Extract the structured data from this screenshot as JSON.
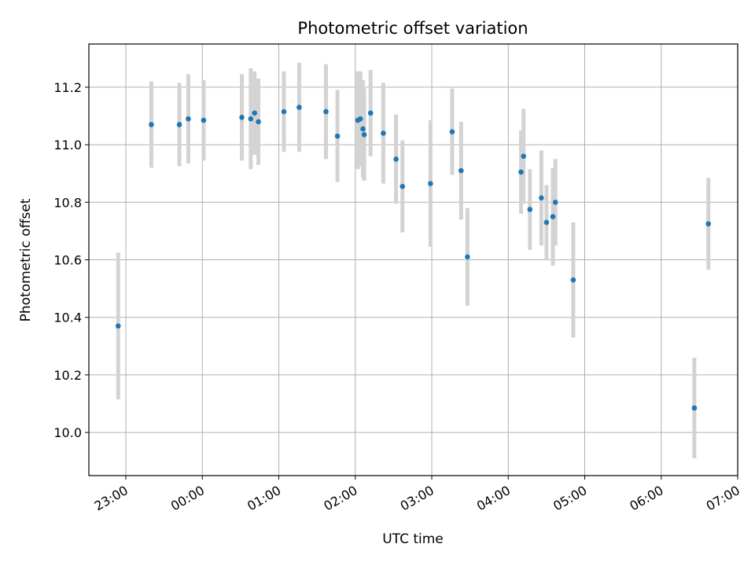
{
  "chart_data": {
    "type": "scatter",
    "title": "Photometric offset variation",
    "xlabel": "UTC time",
    "ylabel": "Photometric offset",
    "x_unit": "time",
    "xlim": [
      "22:31",
      "07:00"
    ],
    "ylim": [
      9.85,
      11.35
    ],
    "x_ticks": [
      "23:00",
      "00:00",
      "01:00",
      "02:00",
      "03:00",
      "04:00",
      "05:00",
      "06:00",
      "07:00"
    ],
    "y_ticks": [
      "10.0",
      "10.2",
      "10.4",
      "10.6",
      "10.8",
      "11.0",
      "11.2"
    ],
    "grid": true,
    "colors": {
      "point": "#1f77b4",
      "errorbar": "#d3d3d3",
      "grid": "#b0b0b0"
    },
    "series": [
      {
        "points": [
          {
            "t": "22:54",
            "y": 10.37,
            "err": 0.255
          },
          {
            "t": "23:20",
            "y": 11.07,
            "err": 0.15
          },
          {
            "t": "23:42",
            "y": 11.07,
            "err": 0.145
          },
          {
            "t": "23:49",
            "y": 11.09,
            "err": 0.155
          },
          {
            "t": "00:01",
            "y": 11.085,
            "err": 0.14
          },
          {
            "t": "00:31",
            "y": 11.095,
            "err": 0.15
          },
          {
            "t": "00:38",
            "y": 11.09,
            "err": 0.175
          },
          {
            "t": "00:41",
            "y": 11.11,
            "err": 0.145
          },
          {
            "t": "00:44",
            "y": 11.08,
            "err": 0.15
          },
          {
            "t": "01:04",
            "y": 11.115,
            "err": 0.14
          },
          {
            "t": "01:16",
            "y": 11.13,
            "err": 0.155
          },
          {
            "t": "01:37",
            "y": 11.115,
            "err": 0.165
          },
          {
            "t": "01:46",
            "y": 11.03,
            "err": 0.16
          },
          {
            "t": "02:02",
            "y": 11.085,
            "err": 0.17
          },
          {
            "t": "02:04",
            "y": 11.09,
            "err": 0.165
          },
          {
            "t": "02:06",
            "y": 11.055,
            "err": 0.17
          },
          {
            "t": "02:07",
            "y": 11.035,
            "err": 0.16
          },
          {
            "t": "02:12",
            "y": 11.11,
            "err": 0.15
          },
          {
            "t": "02:22",
            "y": 11.04,
            "err": 0.175
          },
          {
            "t": "02:32",
            "y": 10.95,
            "err": 0.155
          },
          {
            "t": "02:37",
            "y": 10.855,
            "err": 0.16
          },
          {
            "t": "02:59",
            "y": 10.865,
            "err": 0.22
          },
          {
            "t": "03:16",
            "y": 11.045,
            "err": 0.15
          },
          {
            "t": "03:23",
            "y": 10.91,
            "err": 0.17
          },
          {
            "t": "03:28",
            "y": 10.61,
            "err": 0.17
          },
          {
            "t": "04:10",
            "y": 10.905,
            "err": 0.145
          },
          {
            "t": "04:12",
            "y": 10.96,
            "err": 0.165
          },
          {
            "t": "04:17",
            "y": 10.775,
            "err": 0.14
          },
          {
            "t": "04:26",
            "y": 10.815,
            "err": 0.165
          },
          {
            "t": "04:30",
            "y": 10.73,
            "err": 0.13
          },
          {
            "t": "04:35",
            "y": 10.75,
            "err": 0.17
          },
          {
            "t": "04:37",
            "y": 10.8,
            "err": 0.15
          },
          {
            "t": "04:51",
            "y": 10.53,
            "err": 0.2
          },
          {
            "t": "06:26",
            "y": 10.085,
            "err": 0.175
          },
          {
            "t": "06:37",
            "y": 10.725,
            "err": 0.16
          }
        ]
      }
    ]
  }
}
